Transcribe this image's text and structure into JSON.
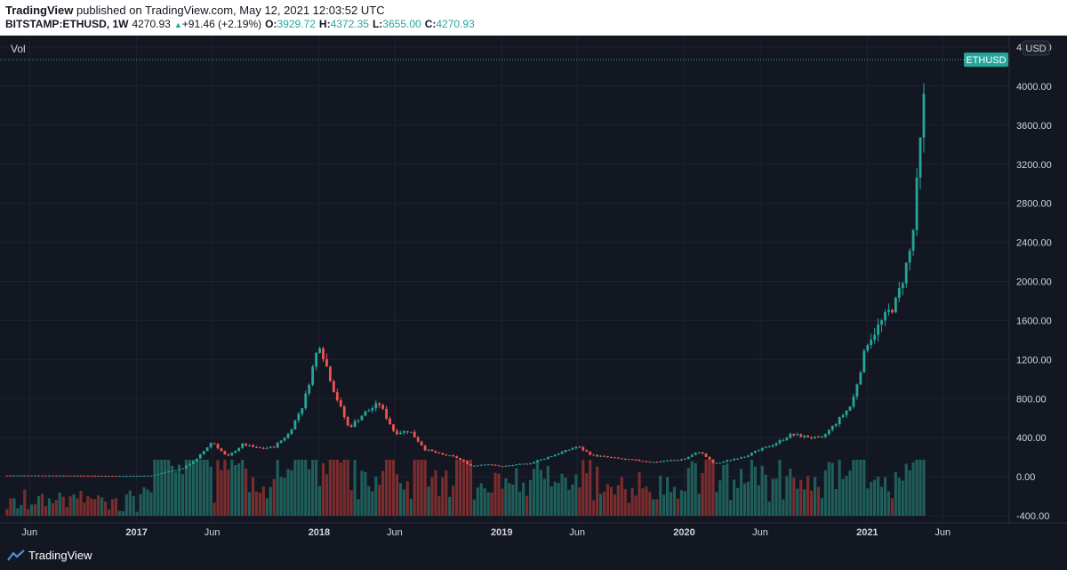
{
  "header": {
    "publisher": "TradingView",
    "published_text": " published on TradingView.com, May 12, 2021 12:03:52 UTC",
    "symbol": "BITSTAMP:ETHUSD, 1W",
    "last": "4270.93",
    "change": "+91.46 (+2.19%)",
    "o_label": "O:",
    "o_value": "3929.72",
    "h_label": "H:",
    "h_value": "4372.35",
    "l_label": "L:",
    "l_value": "3655.00",
    "c_label": "C:",
    "c_value": "4270.93"
  },
  "chart": {
    "vol_label": "Vol",
    "currency": "USD",
    "price_tag": "ETHUSD",
    "colors": {
      "up": "#26a69a",
      "down": "#ef5350",
      "grid": "#1e2230",
      "axis_text": "#d1d4dc",
      "tag": "#26a69a"
    }
  },
  "footer": {
    "brand": "TradingView"
  },
  "chart_data": {
    "type": "candlestick",
    "symbol": "BITSTAMP:ETHUSD",
    "interval": "1W",
    "y_ticks": [
      "4400.00",
      "4000.00",
      "3600.00",
      "3200.00",
      "2800.00",
      "2400.00",
      "2000.00",
      "1600.00",
      "1200.00",
      "800.00",
      "400.00",
      "0.00",
      "-400.00"
    ],
    "ylim": [
      -400,
      4400
    ],
    "x_ticks": [
      "Jun",
      "2017",
      "Jun",
      "2018",
      "Jun",
      "2019",
      "Jun",
      "2020",
      "Jun",
      "2021",
      "Jun"
    ],
    "last_price": 4270.93,
    "price_series": [
      {
        "date": "2016-06",
        "close": 13
      },
      {
        "date": "2016-09",
        "close": 12
      },
      {
        "date": "2016-12",
        "close": 8
      },
      {
        "date": "2017-02",
        "close": 12
      },
      {
        "date": "2017-03",
        "close": 50
      },
      {
        "date": "2017-04",
        "close": 80
      },
      {
        "date": "2017-05",
        "close": 180
      },
      {
        "date": "2017-06",
        "close": 360
      },
      {
        "date": "2017-07",
        "close": 200
      },
      {
        "date": "2017-08",
        "close": 330
      },
      {
        "date": "2017-09",
        "close": 290
      },
      {
        "date": "2017-10",
        "close": 300
      },
      {
        "date": "2017-11",
        "close": 440
      },
      {
        "date": "2017-12",
        "close": 750
      },
      {
        "date": "2018-01",
        "close": 1380
      },
      {
        "date": "2018-02",
        "close": 860
      },
      {
        "date": "2018-03",
        "close": 500
      },
      {
        "date": "2018-04",
        "close": 650
      },
      {
        "date": "2018-05",
        "close": 750
      },
      {
        "date": "2018-06",
        "close": 450
      },
      {
        "date": "2018-07",
        "close": 470
      },
      {
        "date": "2018-08",
        "close": 280
      },
      {
        "date": "2018-09",
        "close": 230
      },
      {
        "date": "2018-10",
        "close": 200
      },
      {
        "date": "2018-11",
        "close": 110
      },
      {
        "date": "2018-12",
        "close": 130
      },
      {
        "date": "2019-01",
        "close": 105
      },
      {
        "date": "2019-03",
        "close": 140
      },
      {
        "date": "2019-05",
        "close": 250
      },
      {
        "date": "2019-06",
        "close": 310
      },
      {
        "date": "2019-07",
        "close": 220
      },
      {
        "date": "2019-09",
        "close": 180
      },
      {
        "date": "2019-11",
        "close": 150
      },
      {
        "date": "2020-01",
        "close": 180
      },
      {
        "date": "2020-02",
        "close": 260
      },
      {
        "date": "2020-03",
        "close": 130
      },
      {
        "date": "2020-05",
        "close": 210
      },
      {
        "date": "2020-07",
        "close": 340
      },
      {
        "date": "2020-08",
        "close": 430
      },
      {
        "date": "2020-10",
        "close": 390
      },
      {
        "date": "2020-11",
        "close": 560
      },
      {
        "date": "2020-12",
        "close": 740
      },
      {
        "date": "2021-01",
        "close": 1380
      },
      {
        "date": "2021-02",
        "close": 1600
      },
      {
        "date": "2021-03",
        "close": 1800
      },
      {
        "date": "2021-04",
        "close": 2400
      },
      {
        "date": "2021-05",
        "close": 4270.93
      }
    ]
  }
}
